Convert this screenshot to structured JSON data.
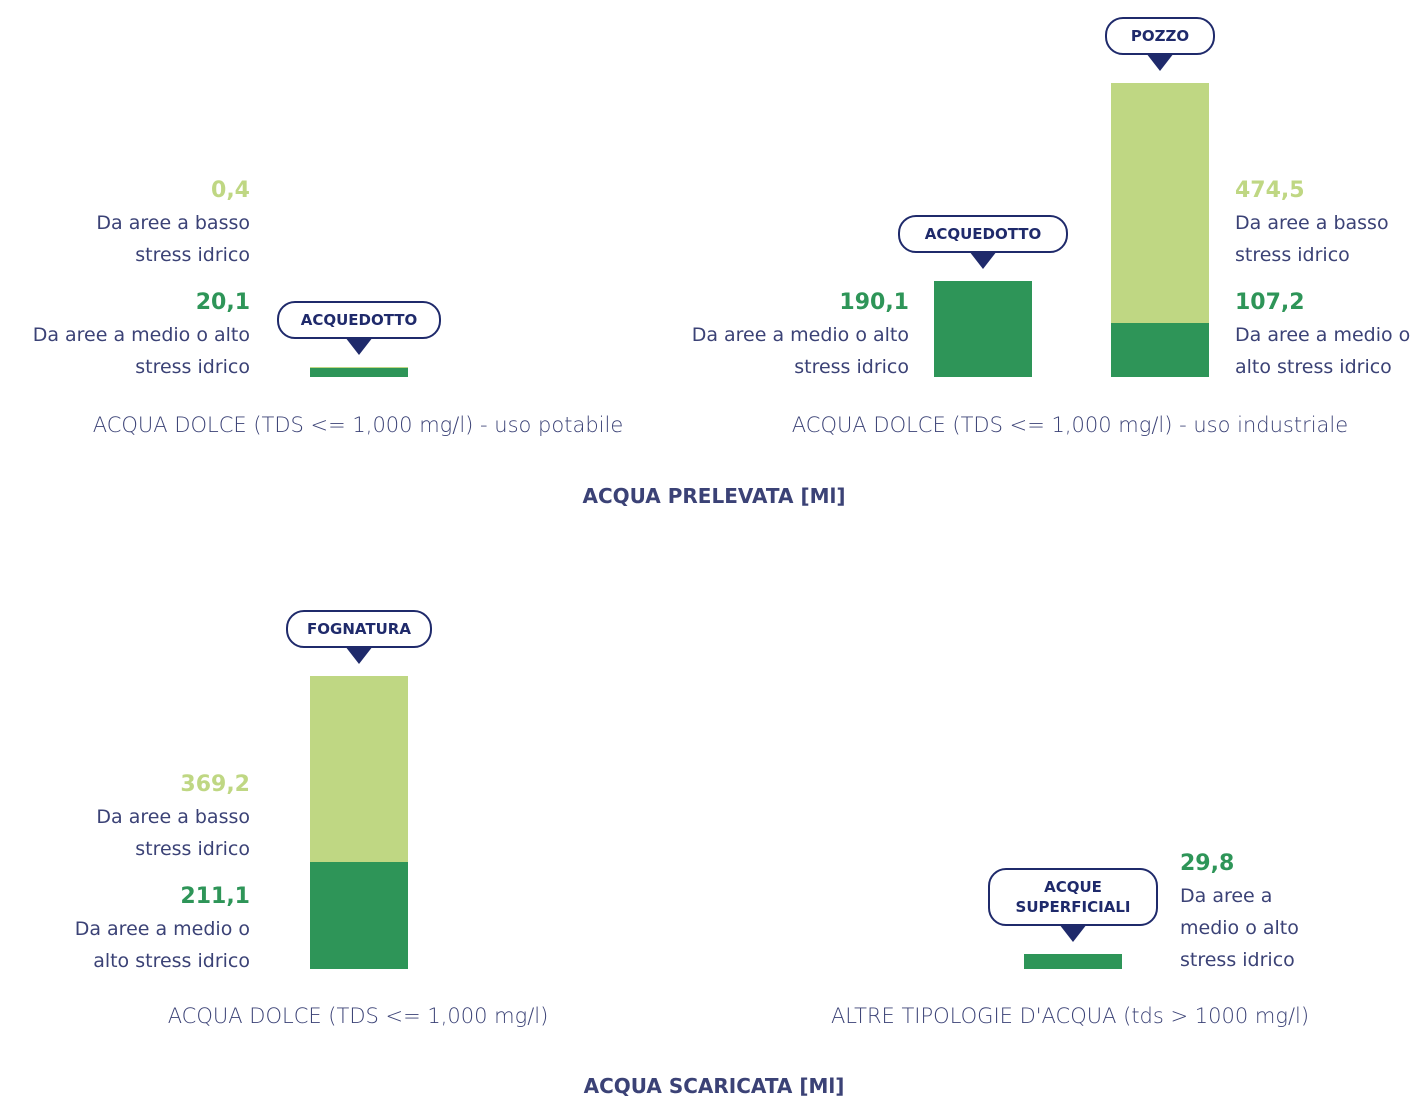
{
  "chart_data": [
    {
      "type": "stacked-bar",
      "section": "ACQUA PRELEVATA [Ml]",
      "title": "ACQUA DOLCE (TDS <= 1,000 mg/l) - uso potabile",
      "bars": [
        {
          "label": "ACQUEDOTTO",
          "names": [
            "Da aree a medio o alto stress idrico",
            "Da aree a basso stress idrico"
          ],
          "values": [
            20.1,
            0.4
          ],
          "value_labels": [
            "20,1",
            "0,4"
          ],
          "colors": [
            "#2e9558",
            "#bfd783"
          ]
        }
      ]
    },
    {
      "type": "stacked-bar",
      "title": "ACQUA DOLCE (TDS <= 1,000 mg/l) - uso industriale",
      "bars": [
        {
          "label": "ACQUEDOTTO",
          "names": [
            "Da aree a medio o alto stress idrico"
          ],
          "values": [
            190.1
          ],
          "value_labels": [
            "190,1"
          ],
          "colors": [
            "#2e9558"
          ]
        },
        {
          "label": "POZZO",
          "names": [
            "Da aree a medio o alto stress idrico",
            "Da aree a basso stress idrico"
          ],
          "values": [
            107.2,
            474.5
          ],
          "value_labels": [
            "107,2",
            "474,5"
          ],
          "colors": [
            "#2e9558",
            "#bfd783"
          ]
        }
      ]
    },
    {
      "type": "stacked-bar",
      "section": "ACQUA SCARICATA [Ml]",
      "title": "ACQUA DOLCE (TDS <= 1,000 mg/l)",
      "bars": [
        {
          "label": "FOGNATURA",
          "names": [
            "Da aree a medio o alto stress idrico",
            "Da aree a basso stress idrico"
          ],
          "values": [
            211.1,
            369.2
          ],
          "value_labels": [
            "211,1",
            "369,2"
          ],
          "colors": [
            "#2e9558",
            "#bfd783"
          ]
        }
      ]
    },
    {
      "type": "stacked-bar",
      "title": "ALTRE TIPOLOGIE D'ACQUA (tds > 1000 mg/l)",
      "bars": [
        {
          "label": "ACQUE SUPERFICIALI",
          "names": [
            "Da aree a medio o alto stress idrico"
          ],
          "values": [
            29.8
          ],
          "value_labels": [
            "29,8"
          ],
          "colors": [
            "#2e9558"
          ]
        }
      ]
    }
  ]
}
